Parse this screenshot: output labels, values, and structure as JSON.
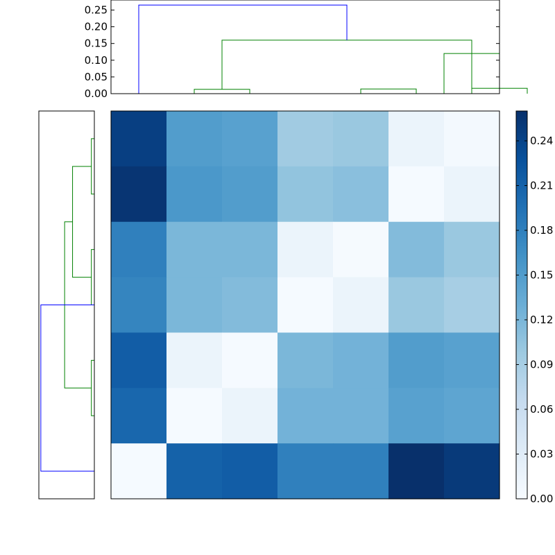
{
  "chart_data": [
    {
      "type": "dendrogram",
      "orientation": "top",
      "ylim": [
        0,
        0.28
      ],
      "y_ticks": [
        "0.00",
        "0.05",
        "0.10",
        "0.15",
        "0.20",
        "0.25"
      ],
      "colors": {
        "above_threshold": "#0000ff",
        "cluster": "#008000"
      },
      "links": [
        {
          "a": 1,
          "b": 2,
          "height": 0.013,
          "color": "#008000"
        },
        {
          "a": 4,
          "b": 5,
          "height": 0.014,
          "color": "#008000"
        },
        {
          "a": 6,
          "b": 7,
          "height": 0.016,
          "color": "#008000"
        },
        {
          "a": 5.5,
          "b": 6.5,
          "height": 0.12,
          "color": "#008000"
        },
        {
          "a": 1.5,
          "b": 6.0,
          "height": 0.16,
          "color": "#008000"
        },
        {
          "a": 0,
          "b": 3.75,
          "height": 0.265,
          "color": "#0000ff"
        }
      ]
    },
    {
      "type": "dendrogram",
      "orientation": "left",
      "colors": {
        "above_threshold": "#0000ff",
        "cluster": "#008000"
      },
      "links": [
        {
          "a": 0,
          "b": 1,
          "height": 0.015,
          "color": "#008000"
        },
        {
          "a": 2,
          "b": 3,
          "height": 0.015,
          "color": "#008000"
        },
        {
          "a": 4,
          "b": 5,
          "height": 0.015,
          "color": "#008000"
        },
        {
          "a": 0.5,
          "b": 2.5,
          "height": 0.11,
          "color": "#008000"
        },
        {
          "a": 1.5,
          "b": 4.5,
          "height": 0.15,
          "color": "#008000"
        },
        {
          "a": 3.0,
          "b": 6,
          "height": 0.27,
          "color": "#0000ff"
        }
      ]
    },
    {
      "type": "heatmap",
      "colormap": "Blues",
      "vmin": 0.0,
      "vmax": 0.26,
      "rows": 7,
      "cols": 7,
      "values": [
        [
          0.245,
          0.15,
          0.145,
          0.095,
          0.1,
          0.015,
          0.005
        ],
        [
          0.255,
          0.155,
          0.15,
          0.105,
          0.11,
          0.002,
          0.015
        ],
        [
          0.18,
          0.12,
          0.12,
          0.015,
          0.003,
          0.115,
          0.1
        ],
        [
          0.175,
          0.12,
          0.115,
          0.002,
          0.015,
          0.1,
          0.09
        ],
        [
          0.215,
          0.015,
          0.002,
          0.12,
          0.125,
          0.15,
          0.145
        ],
        [
          0.205,
          0.002,
          0.015,
          0.125,
          0.125,
          0.145,
          0.14
        ],
        [
          0.002,
          0.21,
          0.215,
          0.18,
          0.18,
          0.26,
          0.25
        ]
      ]
    },
    {
      "type": "colorbar",
      "colormap": "Blues",
      "ylim": [
        0,
        0.26
      ],
      "ticks": [
        "0.00",
        "0.03",
        "0.06",
        "0.09",
        "0.12",
        "0.15",
        "0.18",
        "0.21",
        "0.24"
      ]
    }
  ]
}
